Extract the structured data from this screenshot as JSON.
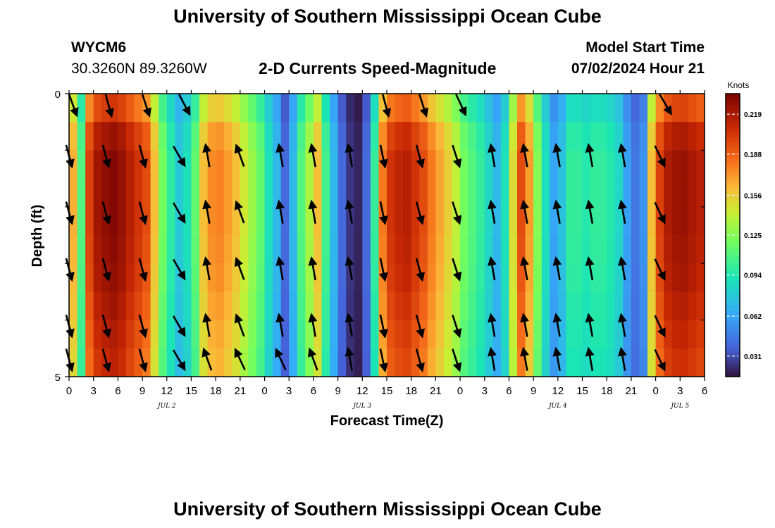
{
  "page": {
    "title": "University of Southern Mississippi Ocean Cube",
    "footer_title": "University of Southern Mississippi Ocean Cube",
    "station_id": "WYCM6",
    "station_coords": "30.3260N  89.3260W",
    "product": "2-D Currents Speed-Magnitude",
    "model_start_label": "Model Start Time",
    "model_start_value": "07/02/2024 Hour 21"
  },
  "chart_data": {
    "type": "heatmap",
    "title": "2-D Currents Speed-Magnitude",
    "xlabel": "Forecast Time(Z)",
    "ylabel": "Depth (ft)",
    "ylim": [
      0,
      5
    ],
    "y_tick_labels": [
      "0",
      "5"
    ],
    "x_tick_labels": [
      "0",
      "3",
      "6",
      "9",
      "12",
      "15",
      "18",
      "21",
      "0",
      "3",
      "6",
      "9",
      "12",
      "15",
      "18",
      "21",
      "0",
      "3",
      "6",
      "9",
      "12",
      "15",
      "18",
      "21",
      "0",
      "3",
      "6"
    ],
    "date_labels": [
      {
        "label": "JUL 2",
        "hour": 12
      },
      {
        "label": "JUL 3",
        "hour": 36
      },
      {
        "label": "JUL 4",
        "hour": 60
      },
      {
        "label": "JUL 5",
        "hour": 75
      }
    ],
    "x_hours_range": [
      0,
      78
    ],
    "colorbar": {
      "unit": "Knots",
      "min": 0.015,
      "max": 0.235,
      "ticks": [
        0.031,
        0.062,
        0.094,
        0.125,
        0.156,
        0.188,
        0.219
      ],
      "tick_labels": [
        "0.031",
        "0.062",
        "0.094",
        "0.125",
        "0.156",
        "0.188",
        "0.219"
      ]
    },
    "speed_hourly": [
      0.165,
      0.11,
      0.2,
      0.222,
      0.228,
      0.232,
      0.226,
      0.215,
      0.205,
      0.195,
      0.16,
      0.12,
      0.098,
      0.078,
      0.09,
      0.115,
      0.16,
      0.175,
      0.178,
      0.17,
      0.16,
      0.145,
      0.13,
      0.115,
      0.09,
      0.07,
      0.04,
      0.07,
      0.11,
      0.135,
      0.16,
      0.105,
      0.07,
      0.04,
      0.025,
      0.02,
      0.04,
      0.1,
      0.18,
      0.205,
      0.212,
      0.215,
      0.205,
      0.195,
      0.18,
      0.168,
      0.155,
      0.14,
      0.12,
      0.11,
      0.1,
      0.085,
      0.07,
      0.09,
      0.15,
      0.195,
      0.17,
      0.125,
      0.09,
      0.062,
      0.075,
      0.1,
      0.1,
      0.095,
      0.1,
      0.1,
      0.095,
      0.085,
      0.06,
      0.045,
      0.055,
      0.16,
      0.2,
      0.218,
      0.224,
      0.225,
      0.22,
      0.215
    ],
    "depth_factor": [
      0.88,
      0.97,
      1.0,
      1.0,
      1.0,
      0.99,
      0.98,
      0.96,
      0.94,
      0.92
    ],
    "vector_hours": [
      0,
      4.5,
      9,
      13.5,
      17,
      21,
      26,
      30,
      34.5,
      38.5,
      43,
      47.5,
      52,
      56,
      60,
      64,
      68,
      72.5
    ],
    "vector_depths": [
      0.1,
      1.1,
      2.1,
      3.1,
      4.1,
      4.85
    ],
    "vector_angles_deg": [
      [
        160,
        165,
        162,
        152,
        null,
        null,
        null,
        null,
        null,
        165,
        162,
        155,
        null,
        null,
        null,
        null,
        null,
        150
      ],
      [
        165,
        165,
        165,
        150,
        -10,
        -20,
        -10,
        -10,
        -10,
        168,
        165,
        162,
        -10,
        -10,
        -10,
        -10,
        -10,
        155
      ],
      [
        165,
        165,
        165,
        150,
        -10,
        -20,
        -10,
        -10,
        -10,
        168,
        165,
        162,
        -10,
        -10,
        -10,
        -10,
        -10,
        155
      ],
      [
        165,
        165,
        165,
        150,
        -10,
        -20,
        -10,
        -10,
        -10,
        168,
        165,
        162,
        -10,
        -10,
        -10,
        -10,
        -10,
        155
      ],
      [
        165,
        165,
        165,
        150,
        -10,
        -20,
        -10,
        -10,
        -10,
        168,
        165,
        162,
        -10,
        -10,
        -10,
        -10,
        -10,
        155
      ],
      [
        165,
        165,
        165,
        150,
        -20,
        -25,
        -25,
        -20,
        -10,
        168,
        165,
        162,
        -10,
        -10,
        -10,
        -10,
        -10,
        155
      ]
    ]
  }
}
